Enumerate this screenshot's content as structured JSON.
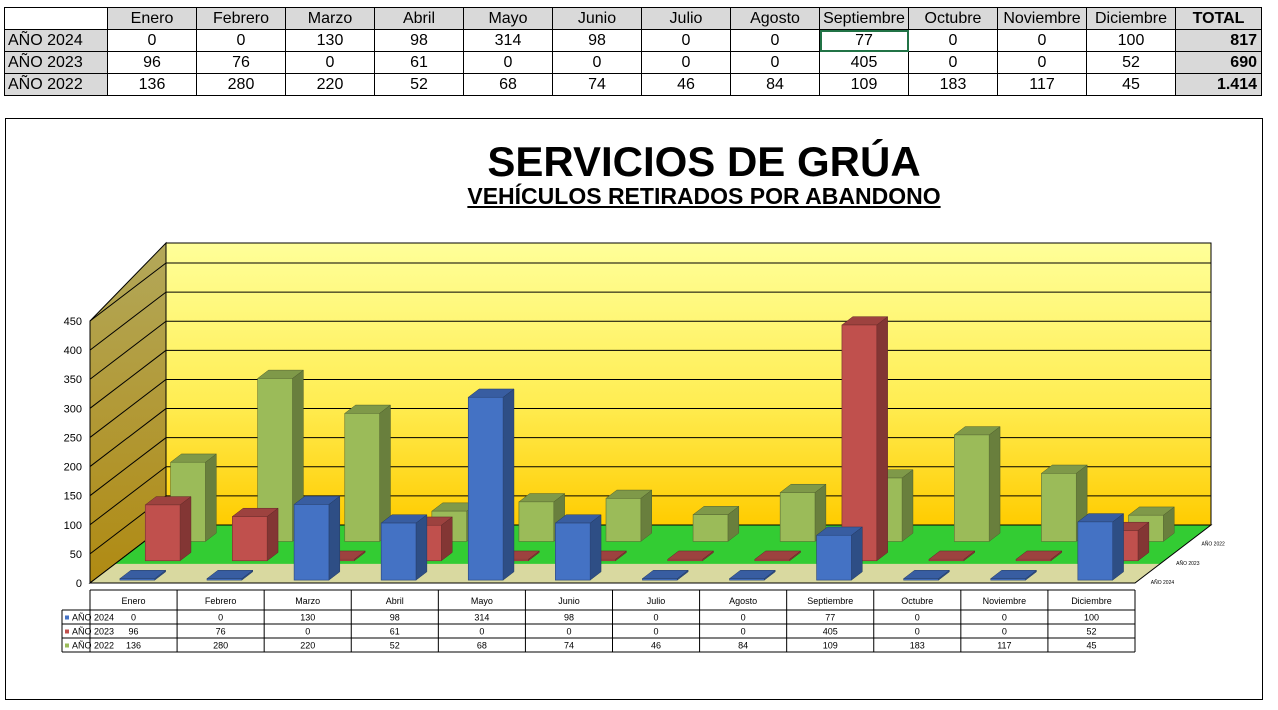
{
  "sheet": {
    "months": [
      "Enero",
      "Febrero",
      "Marzo",
      "Abril",
      "Mayo",
      "Junio",
      "Julio",
      "Agosto",
      "Septiembre",
      "Octubre",
      "Noviembre",
      "Diciembre"
    ],
    "total_label": "TOTAL",
    "rows": [
      {
        "label": "AÑO 2024",
        "values": [
          "0",
          "0",
          "130",
          "98",
          "314",
          "98",
          "0",
          "0",
          "77",
          "0",
          "0",
          "100"
        ],
        "total": "817"
      },
      {
        "label": "AÑO 2023",
        "values": [
          "96",
          "76",
          "0",
          "61",
          "0",
          "0",
          "0",
          "0",
          "405",
          "0",
          "0",
          "52"
        ],
        "total": "690"
      },
      {
        "label": "AÑO 2022",
        "values": [
          "136",
          "280",
          "220",
          "52",
          "68",
          "74",
          "46",
          "84",
          "109",
          "183",
          "117",
          "45"
        ],
        "total": "1.414"
      }
    ]
  },
  "chart_data": {
    "type": "bar",
    "variant": "3d-column",
    "title": "SERVICIOS DE GRÚA",
    "subtitle": "VEHÍCULOS RETIRADOS POR ABANDONO",
    "categories": [
      "Enero",
      "Febrero",
      "Marzo",
      "Abril",
      "Mayo",
      "Junio",
      "Julio",
      "Agosto",
      "Septiembre",
      "Octubre",
      "Noviembre",
      "Diciembre"
    ],
    "series": [
      {
        "name": "AÑO 2024",
        "color": "#4472c4",
        "values": [
          0,
          0,
          130,
          98,
          314,
          98,
          0,
          0,
          77,
          0,
          0,
          100
        ]
      },
      {
        "name": "AÑO 2023",
        "color": "#c0504d",
        "values": [
          96,
          76,
          0,
          61,
          0,
          0,
          0,
          0,
          405,
          0,
          0,
          52
        ]
      },
      {
        "name": "AÑO 2022",
        "color": "#9bbb59",
        "values": [
          136,
          280,
          220,
          52,
          68,
          74,
          46,
          84,
          109,
          183,
          117,
          45
        ]
      }
    ],
    "ylim": [
      0,
      450
    ],
    "yticks": [
      0,
      50,
      100,
      150,
      200,
      250,
      300,
      350,
      400,
      450
    ],
    "grid": true,
    "data_table": true,
    "colors": {
      "wall_top": "#ffff99",
      "wall_bottom": "#ffcc00",
      "floor": "#33cc33",
      "side_wall": "#a69b45"
    }
  }
}
